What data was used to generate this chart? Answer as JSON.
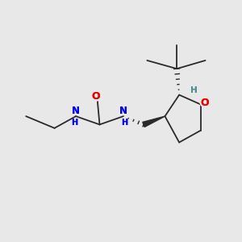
{
  "background_color": "#e8e8e8",
  "bond_color": "#2a2a2a",
  "N_color": "#0000ee",
  "O_color": "#ee0000",
  "H_color": "#4a9090",
  "fig_width": 3.0,
  "fig_height": 3.0,
  "dpi": 100,
  "xlim": [
    0,
    10
  ],
  "ylim": [
    0,
    10
  ]
}
